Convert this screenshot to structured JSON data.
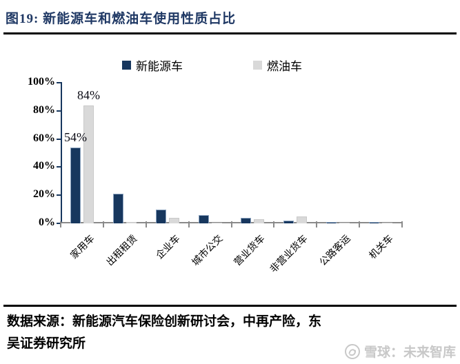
{
  "header": {
    "title": "图19:  新能源车和燃油车使用性质占比"
  },
  "chart_data": {
    "type": "bar",
    "categories": [
      "家用车",
      "出租租赁",
      "企业车",
      "城市公交",
      "营业货车",
      "非营业货车",
      "公路客运",
      "机关车"
    ],
    "series": [
      {
        "name": "新能源车",
        "color": "#17375e",
        "values": [
          54,
          21,
          10,
          6,
          4,
          2,
          1,
          1
        ]
      },
      {
        "name": "燃油车",
        "color": "#d9d9d9",
        "values": [
          84,
          1,
          4,
          0.3,
          3,
          5,
          0.2,
          0.5
        ]
      }
    ],
    "annotations": [
      {
        "series": 0,
        "category": 0,
        "label": "54%"
      },
      {
        "series": 1,
        "category": 0,
        "label": "84%"
      }
    ],
    "y_ticks": [
      "0%",
      "20%",
      "40%",
      "60%",
      "80%",
      "100%"
    ],
    "ylim": [
      0,
      100
    ],
    "grid": false,
    "legend_position": "top",
    "axis_colors": {
      "y_axis": "#17375e",
      "x_axis": "#8a8a8a"
    }
  },
  "source": {
    "line1": "数据来源：新能源汽车保险创新研讨会，中再产险，东",
    "line2": "吴证券研究所"
  },
  "watermark": {
    "text": "雪球：未来智库",
    "logo": "xueqiu-snowball-logo",
    "color": "#c8c8c8"
  }
}
